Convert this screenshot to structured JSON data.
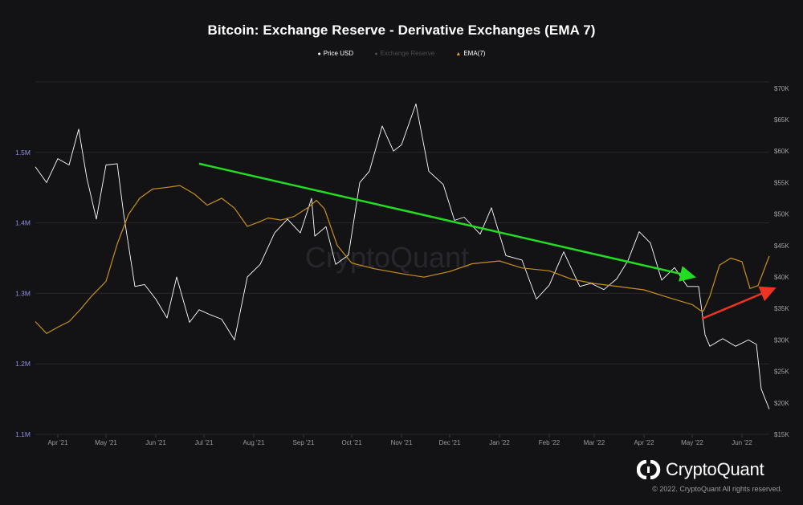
{
  "title": "Bitcoin: Exchange Reserve - Derivative Exchanges (EMA 7)",
  "legend": [
    {
      "label": "Price USD",
      "color": "#ffffff",
      "marker": "dot"
    },
    {
      "label": "Exchange Reserve",
      "color": "#4b4b52",
      "marker": "dot"
    },
    {
      "label": "EMA(7)",
      "color": "#f0a020",
      "marker": "triangle"
    }
  ],
  "watermark": "CryptoQuant",
  "brand": {
    "name": "CryptoQuant",
    "copyright": "© 2022. CryptoQuant All rights reserved."
  },
  "chart_data": {
    "type": "line",
    "title": "Bitcoin: Exchange Reserve - Derivative Exchanges (EMA 7)",
    "x_ticks": [
      "Apr '21",
      "May '21",
      "Jun '21",
      "Jul '21",
      "Aug '21",
      "Sep '21",
      "Oct '21",
      "Nov '21",
      "Dec '21",
      "Jan '22",
      "Feb '22",
      "Mar '22",
      "Apr '22",
      "May '22",
      "Jun '22"
    ],
    "x_range": [
      "2021-03-18",
      "2022-06-18"
    ],
    "left_axis": {
      "ticks": [
        "1.1M",
        "1.2M",
        "1.3M",
        "1.4M",
        "1.5M"
      ],
      "ylim": [
        1100000,
        1600000
      ],
      "color": "#8f8fe8"
    },
    "right_axis": {
      "ticks": [
        "$15K",
        "$20K",
        "$25K",
        "$30K",
        "$35K",
        "$40K",
        "$45K",
        "$50K",
        "$55K",
        "$60K",
        "$65K",
        "$70K"
      ],
      "ylim": [
        15000,
        71000
      ],
      "color": "#a0a0a8"
    },
    "grid": true,
    "series": [
      {
        "name": "Price USD",
        "axis": "right",
        "color": "#ffffff",
        "x": [
          "2021-03-18",
          "2021-03-25",
          "2021-04-01",
          "2021-04-08",
          "2021-04-14",
          "2021-04-19",
          "2021-04-25",
          "2021-05-01",
          "2021-05-08",
          "2021-05-12",
          "2021-05-19",
          "2021-05-25",
          "2021-06-01",
          "2021-06-08",
          "2021-06-14",
          "2021-06-22",
          "2021-06-28",
          "2021-07-05",
          "2021-07-12",
          "2021-07-20",
          "2021-07-28",
          "2021-08-05",
          "2021-08-14",
          "2021-08-22",
          "2021-08-30",
          "2021-09-06",
          "2021-09-08",
          "2021-09-15",
          "2021-09-21",
          "2021-09-29",
          "2021-10-06",
          "2021-10-12",
          "2021-10-20",
          "2021-10-27",
          "2021-11-01",
          "2021-11-10",
          "2021-11-18",
          "2021-11-27",
          "2021-12-04",
          "2021-12-10",
          "2021-12-20",
          "2021-12-27",
          "2022-01-05",
          "2022-01-15",
          "2022-01-24",
          "2022-02-01",
          "2022-02-10",
          "2022-02-20",
          "2022-02-27",
          "2022-03-07",
          "2022-03-15",
          "2022-03-22",
          "2022-03-29",
          "2022-04-05",
          "2022-04-12",
          "2022-04-20",
          "2022-04-28",
          "2022-05-05",
          "2022-05-09",
          "2022-05-12",
          "2022-05-20",
          "2022-05-28",
          "2022-06-05",
          "2022-06-10",
          "2022-06-13",
          "2022-06-18"
        ],
        "y": [
          57500,
          55000,
          58800,
          57800,
          63500,
          55800,
          49200,
          57800,
          58000,
          50000,
          38500,
          38800,
          36500,
          33500,
          40000,
          32800,
          34800,
          34000,
          33300,
          30000,
          40000,
          42000,
          47000,
          49200,
          47000,
          52500,
          46500,
          48000,
          42000,
          43500,
          55000,
          56800,
          64000,
          60000,
          61000,
          67500,
          56800,
          54700,
          49000,
          49500,
          46800,
          51000,
          43400,
          42700,
          36500,
          38700,
          44000,
          38500,
          39000,
          38000,
          39700,
          42600,
          47200,
          45400,
          39500,
          41500,
          38500,
          38500,
          30800,
          29000,
          30200,
          29000,
          30000,
          29300,
          22200,
          19000
        ]
      },
      {
        "name": "EMA(7)",
        "axis": "left",
        "color": "#c8901a",
        "x": [
          "2021-03-18",
          "2021-03-25",
          "2021-04-01",
          "2021-04-08",
          "2021-04-15",
          "2021-04-22",
          "2021-05-01",
          "2021-05-08",
          "2021-05-15",
          "2021-05-22",
          "2021-05-30",
          "2021-06-07",
          "2021-06-16",
          "2021-06-25",
          "2021-07-03",
          "2021-07-12",
          "2021-07-20",
          "2021-07-28",
          "2021-08-04",
          "2021-08-10",
          "2021-08-18",
          "2021-08-26",
          "2021-09-04",
          "2021-09-09",
          "2021-09-14",
          "2021-09-22",
          "2021-10-01",
          "2021-10-15",
          "2021-11-01",
          "2021-11-15",
          "2021-12-01",
          "2021-12-15",
          "2022-01-01",
          "2022-01-15",
          "2022-02-01",
          "2022-02-15",
          "2022-03-01",
          "2022-03-15",
          "2022-04-01",
          "2022-04-15",
          "2022-05-01",
          "2022-05-06",
          "2022-05-08",
          "2022-05-12",
          "2022-05-18",
          "2022-05-25",
          "2022-06-01",
          "2022-06-06",
          "2022-06-11",
          "2022-06-18"
        ],
        "y": [
          1260000,
          1243000,
          1252000,
          1260000,
          1277000,
          1296000,
          1317000,
          1370000,
          1412000,
          1435000,
          1448000,
          1450000,
          1453000,
          1441000,
          1425000,
          1435000,
          1421000,
          1395000,
          1401000,
          1407000,
          1404000,
          1409000,
          1422000,
          1432000,
          1420000,
          1368000,
          1343000,
          1335000,
          1328000,
          1323000,
          1331000,
          1342000,
          1346000,
          1336000,
          1332000,
          1320000,
          1314000,
          1310000,
          1305000,
          1295000,
          1284000,
          1276000,
          1275000,
          1296000,
          1340000,
          1350000,
          1345000,
          1307000,
          1311000,
          1353000
        ]
      }
    ],
    "annotations": [
      {
        "type": "arrow",
        "color": "#22dd22",
        "from": [
          "2021-06-28",
          1484000
        ],
        "to": [
          "2022-05-01",
          1324000
        ]
      },
      {
        "type": "arrow",
        "color": "#ee3322",
        "from": [
          "2022-05-07",
          1264000
        ],
        "to": [
          "2022-06-20",
          1306000
        ]
      }
    ]
  }
}
